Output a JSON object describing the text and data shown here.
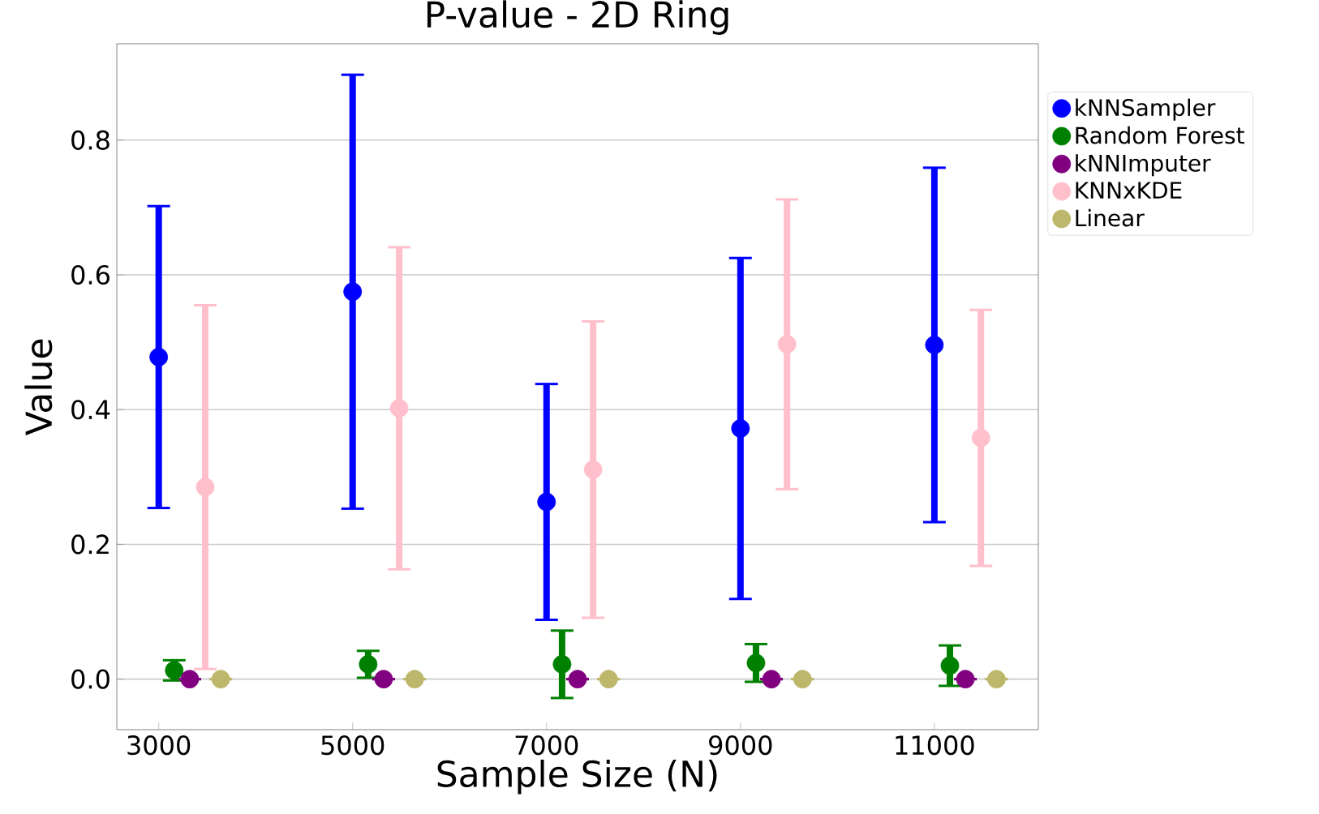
{
  "chart_data": {
    "type": "scatter",
    "title": "P-value - 2D Ring",
    "xlabel": "Sample Size (N)",
    "ylabel": "Value",
    "xlim": [
      2568,
      12072
    ],
    "ylim": [
      -0.075,
      0.943
    ],
    "xticks": [
      3000,
      5000,
      7000,
      9000,
      11000
    ],
    "yticks": [
      {
        "value": 0,
        "label": "0.0"
      },
      0.2,
      0.4,
      0.6,
      0.8
    ],
    "grid": "y",
    "legend": "right",
    "series": [
      {
        "name": "kNNSampler",
        "color": "#0000ff",
        "x": [
          3000,
          5000,
          7000,
          9000,
          11000
        ],
        "values": [
          0.478,
          0.575,
          0.263,
          0.372,
          0.496
        ],
        "errors": [
          0.224,
          0.322,
          0.175,
          0.253,
          0.263
        ]
      },
      {
        "name": "Random Forest",
        "color": "#008000",
        "x": [
          3160,
          5160,
          7160,
          9160,
          11160
        ],
        "values": [
          0.013,
          0.022,
          0.022,
          0.024,
          0.02
        ],
        "errors": [
          0.015,
          0.02,
          0.05,
          0.028,
          0.03
        ]
      },
      {
        "name": "kNNImputer",
        "color": "#800080",
        "x": [
          3320,
          5320,
          7320,
          9320,
          11320
        ],
        "values": [
          0,
          0,
          0,
          0,
          0
        ],
        "errors": [
          0,
          0,
          0,
          0,
          0
        ]
      },
      {
        "name": "KNNxKDE",
        "color": "#ffc0cb",
        "x": [
          3480,
          5480,
          7480,
          9480,
          11480
        ],
        "values": [
          0.285,
          0.402,
          0.311,
          0.497,
          0.358
        ],
        "errors": [
          0.27,
          0.239,
          0.22,
          0.215,
          0.19
        ]
      },
      {
        "name": "Linear",
        "color": "#bdb76b",
        "x": [
          3640,
          5640,
          7640,
          9640,
          11640
        ],
        "values": [
          0,
          0,
          0,
          0,
          0
        ],
        "errors": [
          0,
          0,
          0,
          0,
          0
        ]
      }
    ]
  }
}
